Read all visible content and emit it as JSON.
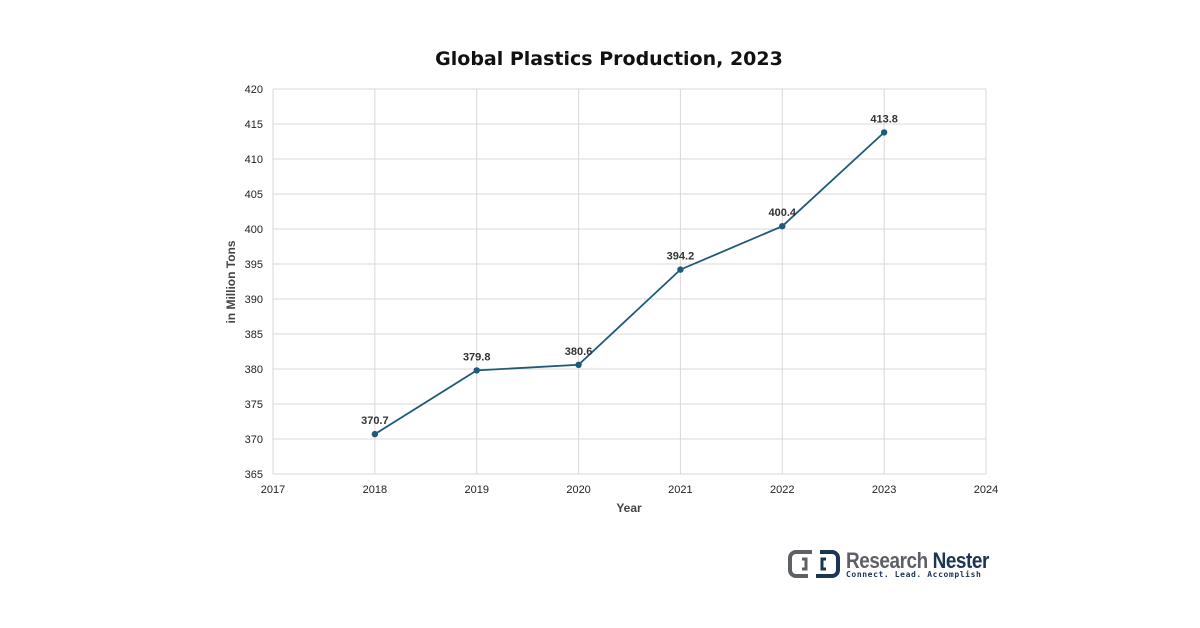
{
  "chart_data": {
    "type": "line",
    "title": "Global Plastics Production, 2023",
    "xlabel": "Year",
    "ylabel": "in Million Tons",
    "xlim": [
      2017,
      2024
    ],
    "ylim": [
      365,
      420
    ],
    "x_ticks": [
      "2017",
      "2018",
      "2019",
      "2020",
      "2021",
      "2022",
      "2023",
      "2024"
    ],
    "y_ticks": [
      "365",
      "370",
      "375",
      "380",
      "385",
      "390",
      "395",
      "400",
      "405",
      "410",
      "415",
      "420"
    ],
    "grid": true,
    "line_color": "#1f5a7a",
    "series": [
      {
        "x": [
          2018,
          2019,
          2020,
          2021,
          2022,
          2023
        ],
        "values": [
          370.7,
          379.8,
          380.6,
          394.2,
          400.4,
          413.8
        ],
        "data_labels": [
          "370.7",
          "379.8",
          "380.6",
          "394.2",
          "400.4",
          "413.8"
        ]
      }
    ]
  },
  "brand": {
    "name_part1": "Research",
    "name_part2": "Nester",
    "tagline": "Connect. Lead. Accomplish",
    "logo_icon": "research-nester-logo-icon"
  }
}
